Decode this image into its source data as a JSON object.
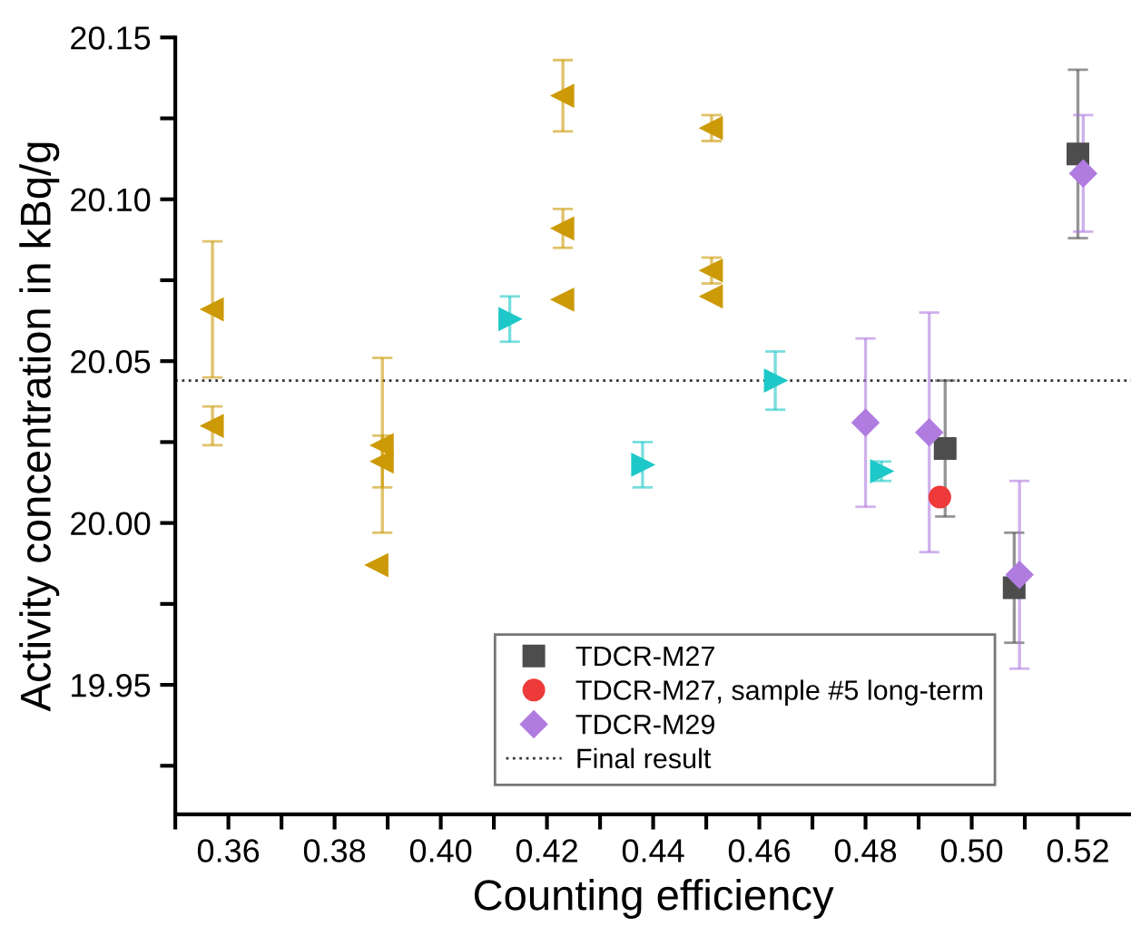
{
  "chart_data": {
    "type": "scatter",
    "xlabel": "Counting efficiency",
    "ylabel": "Activity concentration in kBq/g",
    "xlim": [
      0.35,
      0.53
    ],
    "ylim": [
      19.91,
      20.15
    ],
    "xticks": [
      {
        "value": 0.35,
        "label": null
      },
      0.36,
      {
        "value": 0.37,
        "label": null
      },
      0.38,
      {
        "value": 0.39,
        "label": null
      },
      {
        "value": 0.4,
        "label": "0.40"
      },
      {
        "value": 0.41,
        "label": null
      },
      0.42,
      {
        "value": 0.43,
        "label": null
      },
      0.44,
      {
        "value": 0.45,
        "label": null
      },
      0.46,
      {
        "value": 0.47,
        "label": null
      },
      0.48,
      {
        "value": 0.49,
        "label": null
      },
      {
        "value": 0.5,
        "label": "0.50"
      },
      {
        "value": 0.51,
        "label": null
      },
      0.52
    ],
    "yticks": [
      {
        "value": 19.925,
        "label": null
      },
      19.95,
      {
        "value": 19.975,
        "label": null
      },
      {
        "value": 20.0,
        "label": "20.00"
      },
      {
        "value": 20.025,
        "label": null
      },
      20.05,
      {
        "value": 20.075,
        "label": null
      },
      {
        "value": 20.1,
        "label": "20.10"
      },
      {
        "value": 20.125,
        "label": null
      },
      20.15
    ],
    "grid": false,
    "legend": "bottom right",
    "series": [
      {
        "name": "TDCR-M27",
        "color": "#4d4d4d",
        "marker": "square",
        "x": [
          0.495,
          0.508,
          0.52
        ],
        "values": [
          20.023,
          19.98,
          20.114
        ],
        "errors": [
          0.021,
          0.017,
          0.026
        ]
      },
      {
        "name": "TDCR-M27, sample #5 long-term",
        "color": "#ee3a3a",
        "marker": "circle",
        "x": [
          0.494
        ],
        "values": [
          20.008
        ]
      },
      {
        "name": "TDCR-M29",
        "color": "#b07ce0",
        "marker": "diamond",
        "x": [
          0.48,
          0.492,
          0.509,
          0.521
        ],
        "values": [
          20.031,
          20.028,
          19.984,
          20.108
        ],
        "errors": [
          0.026,
          0.037,
          0.029,
          0.018
        ]
      },
      {
        "color": "#cc9a06",
        "marker": "triangle_left",
        "x": [
          0.357,
          0.357,
          0.389,
          0.389,
          0.388,
          0.423,
          0.423,
          0.423,
          0.451,
          0.451,
          0.451
        ],
        "values": [
          20.066,
          20.03,
          20.024,
          20.019,
          19.987,
          20.132,
          20.091,
          20.069,
          20.122,
          20.078,
          20.07
        ],
        "errors": [
          0.021,
          0.006,
          0.027,
          0.008,
          null,
          0.011,
          0.006,
          null,
          0.004,
          0.004,
          null
        ]
      },
      {
        "color": "#1ec8c8",
        "marker": "triangle_right",
        "x": [
          0.413,
          0.438,
          0.463,
          0.483
        ],
        "values": [
          20.063,
          20.018,
          20.044,
          20.016
        ],
        "errors": [
          0.007,
          0.007,
          0.009,
          0.003
        ]
      }
    ],
    "ref_lines": [
      {
        "axis": "y",
        "value": 20.044,
        "label": "Final result",
        "color": "#333333",
        "line_style": "dotted"
      }
    ]
  }
}
